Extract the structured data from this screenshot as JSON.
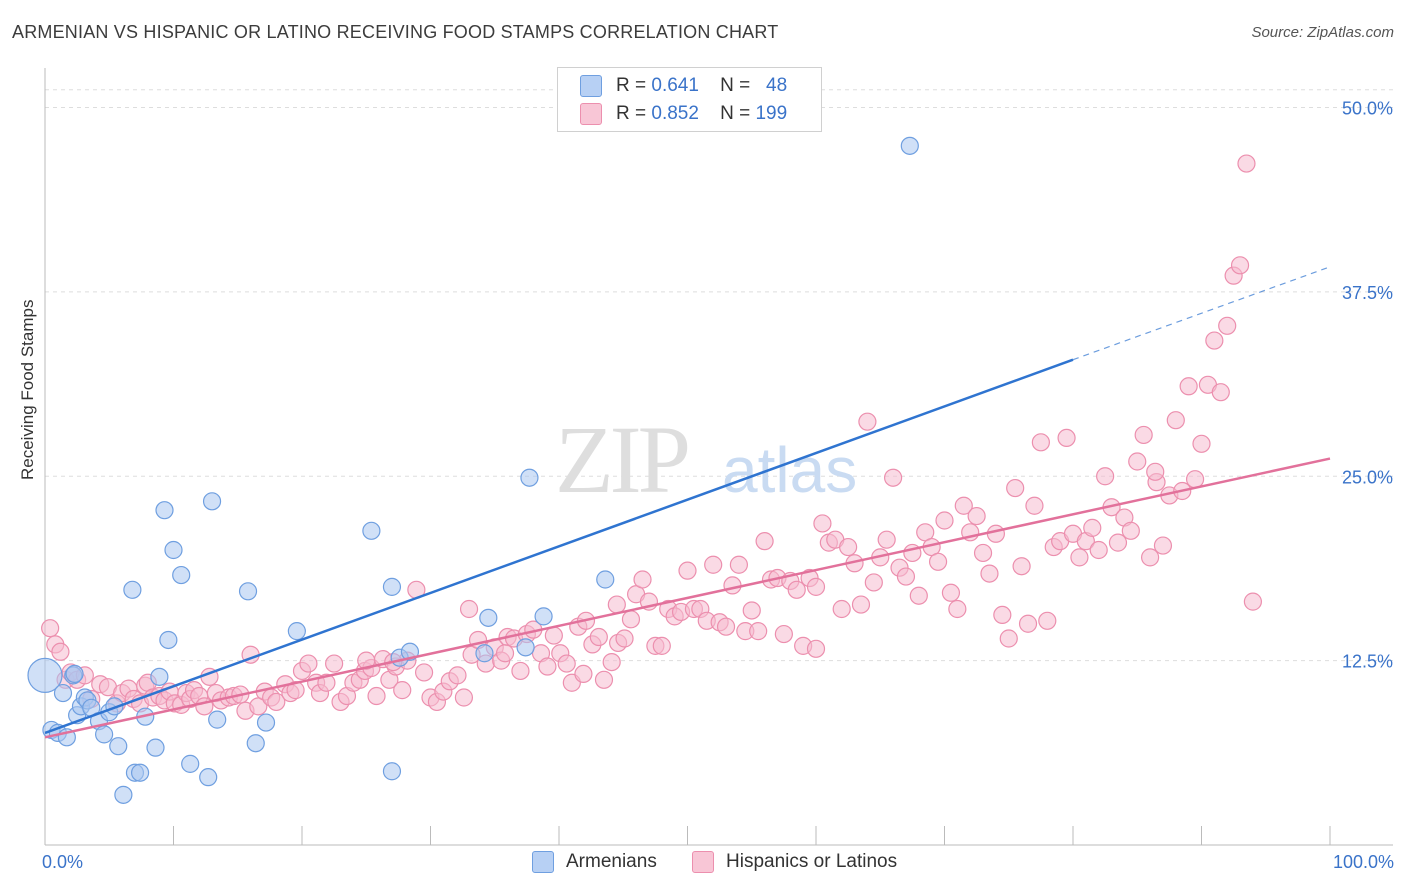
{
  "title": "ARMENIAN VS HISPANIC OR LATINO RECEIVING FOOD STAMPS CORRELATION CHART",
  "source": "Source: ZipAtlas.com",
  "watermark": {
    "zip": "ZIP",
    "atlas": "atlas"
  },
  "legend_top": [
    {
      "r_label": "R =",
      "r_value": "0.641",
      "n_label": "N =",
      "n_value": "48"
    },
    {
      "r_label": "R =",
      "r_value": "0.852",
      "n_label": "N =",
      "n_value": "199"
    }
  ],
  "legend_bottom": [
    "Armenians",
    "Hispanics or Latinos"
  ],
  "colors": {
    "armenian_fill": "#a9c6f0",
    "armenian_stroke": "#6f9fe0",
    "armenian_line": "#2f74d0",
    "hispanic_fill": "#f6bcd0",
    "hispanic_stroke": "#ec8fae",
    "hispanic_line": "#e2719b",
    "tick_text": "#3a73c9",
    "grid": "#dddddd"
  },
  "chart_data": {
    "type": "scatter",
    "title": "ARMENIAN VS HISPANIC OR LATINO RECEIVING FOOD STAMPS CORRELATION CHART",
    "xlabel": "",
    "ylabel": "Receiving Food Stamps",
    "x_tick_labels": [
      "0.0%",
      "100.0%"
    ],
    "y_tick_labels": [
      "12.5%",
      "25.0%",
      "37.5%",
      "50.0%"
    ],
    "y_ticks": [
      12.5,
      25.0,
      37.5,
      50.0
    ],
    "xlim": [
      0,
      100
    ],
    "ylim": [
      0,
      52
    ],
    "grid": true,
    "legend_position": "top-center",
    "series": [
      {
        "name": "Armenians",
        "r": 0.641,
        "n": 48,
        "trend": {
          "x0": 0,
          "y0": 7.6,
          "x1": 80,
          "y1": 32.9,
          "dash_to_x": 100,
          "dash_to_y": 39.2
        },
        "points": [
          [
            0.0,
            11.5
          ],
          [
            0.5,
            7.8
          ],
          [
            1.0,
            7.6
          ],
          [
            1.7,
            7.3
          ],
          [
            1.4,
            10.3
          ],
          [
            2.2,
            11.5
          ],
          [
            2.5,
            8.8
          ],
          [
            2.8,
            9.4
          ],
          [
            3.1,
            10.0
          ],
          [
            3.3,
            9.8
          ],
          [
            3.6,
            9.3
          ],
          [
            4.2,
            8.4
          ],
          [
            4.6,
            7.5
          ],
          [
            5.0,
            9.0
          ],
          [
            5.4,
            9.4
          ],
          [
            5.7,
            6.7
          ],
          [
            6.1,
            3.4
          ],
          [
            6.8,
            17.3
          ],
          [
            7.0,
            4.9
          ],
          [
            7.4,
            4.9
          ],
          [
            7.8,
            8.7
          ],
          [
            8.6,
            6.6
          ],
          [
            8.9,
            11.4
          ],
          [
            9.3,
            22.7
          ],
          [
            9.6,
            13.9
          ],
          [
            10.0,
            20.0
          ],
          [
            10.6,
            18.3
          ],
          [
            11.3,
            5.5
          ],
          [
            12.7,
            4.6
          ],
          [
            13.0,
            23.3
          ],
          [
            13.4,
            8.5
          ],
          [
            15.8,
            17.2
          ],
          [
            16.4,
            6.9
          ],
          [
            17.2,
            8.3
          ],
          [
            19.6,
            14.5
          ],
          [
            25.4,
            21.3
          ],
          [
            27.0,
            17.5
          ],
          [
            27.0,
            5.0
          ],
          [
            27.6,
            12.7
          ],
          [
            28.4,
            13.1
          ],
          [
            34.2,
            13.0
          ],
          [
            34.5,
            15.4
          ],
          [
            37.4,
            13.4
          ],
          [
            37.7,
            24.9
          ],
          [
            38.8,
            15.5
          ],
          [
            43.6,
            18.0
          ],
          [
            67.3,
            47.4
          ],
          [
            2.3,
            11.6
          ]
        ]
      },
      {
        "name": "Hispanics or Latinos",
        "r": 0.852,
        "n": 199,
        "trend": {
          "x0": 0,
          "y0": 7.3,
          "x1": 100,
          "y1": 26.2
        },
        "points": [
          [
            0.4,
            14.7
          ],
          [
            0.8,
            13.6
          ],
          [
            1.2,
            13.1
          ],
          [
            1.6,
            11.2
          ],
          [
            2.0,
            11.7
          ],
          [
            2.5,
            11.2
          ],
          [
            3.1,
            11.5
          ],
          [
            3.6,
            9.9
          ],
          [
            4.3,
            10.9
          ],
          [
            4.9,
            10.7
          ],
          [
            5.6,
            9.6
          ],
          [
            6.0,
            10.3
          ],
          [
            6.5,
            10.6
          ],
          [
            6.9,
            9.9
          ],
          [
            7.4,
            9.6
          ],
          [
            7.8,
            10.8
          ],
          [
            8.0,
            11.0
          ],
          [
            8.4,
            10.0
          ],
          [
            8.9,
            10.1
          ],
          [
            9.3,
            9.8
          ],
          [
            9.7,
            10.4
          ],
          [
            10.1,
            9.6
          ],
          [
            10.6,
            9.5
          ],
          [
            11.0,
            10.3
          ],
          [
            11.3,
            9.9
          ],
          [
            11.6,
            10.5
          ],
          [
            12.0,
            10.1
          ],
          [
            12.4,
            9.4
          ],
          [
            12.8,
            11.4
          ],
          [
            13.3,
            10.3
          ],
          [
            13.7,
            9.8
          ],
          [
            14.3,
            10.0
          ],
          [
            14.7,
            10.1
          ],
          [
            15.2,
            10.2
          ],
          [
            15.6,
            9.1
          ],
          [
            16.0,
            12.9
          ],
          [
            16.6,
            9.4
          ],
          [
            17.1,
            10.4
          ],
          [
            17.6,
            10.0
          ],
          [
            18.0,
            9.7
          ],
          [
            18.7,
            10.9
          ],
          [
            19.1,
            10.3
          ],
          [
            19.5,
            10.5
          ],
          [
            20.0,
            11.8
          ],
          [
            20.5,
            12.3
          ],
          [
            21.1,
            11.0
          ],
          [
            21.4,
            10.3
          ],
          [
            21.9,
            11.0
          ],
          [
            22.5,
            12.3
          ],
          [
            23.0,
            9.7
          ],
          [
            23.5,
            10.1
          ],
          [
            24.0,
            11.0
          ],
          [
            24.5,
            11.2
          ],
          [
            24.9,
            11.8
          ],
          [
            25.4,
            12.0
          ],
          [
            25.8,
            10.1
          ],
          [
            26.3,
            12.6
          ],
          [
            26.8,
            11.2
          ],
          [
            27.3,
            12.1
          ],
          [
            27.8,
            10.5
          ],
          [
            28.2,
            12.5
          ],
          [
            28.9,
            17.3
          ],
          [
            29.5,
            11.7
          ],
          [
            30.0,
            10.0
          ],
          [
            30.5,
            9.7
          ],
          [
            31.0,
            10.4
          ],
          [
            31.5,
            11.1
          ],
          [
            32.1,
            11.5
          ],
          [
            32.6,
            10.0
          ],
          [
            33.2,
            12.9
          ],
          [
            33.7,
            13.9
          ],
          [
            34.3,
            12.3
          ],
          [
            35.0,
            13.4
          ],
          [
            35.5,
            12.5
          ],
          [
            36.0,
            14.1
          ],
          [
            36.5,
            14.0
          ],
          [
            37.0,
            11.8
          ],
          [
            37.5,
            14.3
          ],
          [
            38.0,
            14.6
          ],
          [
            38.6,
            13.0
          ],
          [
            39.1,
            12.1
          ],
          [
            39.6,
            14.2
          ],
          [
            40.1,
            13.0
          ],
          [
            40.6,
            12.3
          ],
          [
            41.0,
            11.0
          ],
          [
            41.5,
            14.8
          ],
          [
            42.1,
            15.2
          ],
          [
            42.6,
            13.6
          ],
          [
            43.1,
            14.1
          ],
          [
            43.5,
            11.2
          ],
          [
            44.1,
            12.4
          ],
          [
            44.6,
            13.7
          ],
          [
            45.1,
            14.0
          ],
          [
            45.6,
            15.3
          ],
          [
            46.0,
            17.0
          ],
          [
            46.5,
            18.0
          ],
          [
            47.0,
            16.5
          ],
          [
            47.5,
            13.5
          ],
          [
            48.0,
            13.5
          ],
          [
            48.5,
            16.0
          ],
          [
            49.0,
            15.5
          ],
          [
            49.5,
            15.8
          ],
          [
            50.0,
            18.6
          ],
          [
            50.5,
            16.0
          ],
          [
            51.0,
            16.0
          ],
          [
            51.5,
            15.2
          ],
          [
            52.0,
            19.0
          ],
          [
            52.5,
            15.1
          ],
          [
            53.0,
            14.8
          ],
          [
            53.5,
            17.6
          ],
          [
            54.0,
            19.0
          ],
          [
            54.5,
            14.5
          ],
          [
            55.0,
            15.9
          ],
          [
            55.5,
            14.5
          ],
          [
            56.0,
            20.6
          ],
          [
            56.5,
            18.0
          ],
          [
            57.0,
            18.1
          ],
          [
            57.5,
            14.3
          ],
          [
            58.0,
            17.9
          ],
          [
            58.5,
            17.3
          ],
          [
            59.0,
            13.5
          ],
          [
            59.5,
            18.1
          ],
          [
            60.0,
            17.5
          ],
          [
            60.5,
            21.8
          ],
          [
            61.0,
            20.5
          ],
          [
            61.5,
            20.7
          ],
          [
            62.0,
            16.0
          ],
          [
            62.5,
            20.2
          ],
          [
            63.0,
            19.1
          ],
          [
            63.5,
            16.3
          ],
          [
            64.0,
            28.7
          ],
          [
            64.5,
            17.8
          ],
          [
            65.0,
            19.5
          ],
          [
            65.5,
            20.7
          ],
          [
            66.0,
            24.9
          ],
          [
            66.5,
            18.8
          ],
          [
            67.0,
            18.2
          ],
          [
            67.5,
            19.8
          ],
          [
            68.0,
            16.9
          ],
          [
            68.5,
            21.2
          ],
          [
            69.0,
            20.2
          ],
          [
            69.5,
            19.2
          ],
          [
            70.0,
            22.0
          ],
          [
            70.5,
            17.1
          ],
          [
            71.0,
            16.0
          ],
          [
            71.5,
            23.0
          ],
          [
            72.0,
            21.2
          ],
          [
            72.5,
            22.3
          ],
          [
            73.0,
            19.8
          ],
          [
            73.5,
            18.4
          ],
          [
            74.0,
            21.1
          ],
          [
            74.5,
            15.6
          ],
          [
            75.0,
            14.0
          ],
          [
            75.5,
            24.2
          ],
          [
            76.0,
            18.9
          ],
          [
            76.5,
            15.0
          ],
          [
            77.0,
            23.0
          ],
          [
            77.5,
            27.3
          ],
          [
            78.0,
            15.2
          ],
          [
            78.5,
            20.2
          ],
          [
            79.0,
            20.6
          ],
          [
            79.5,
            27.6
          ],
          [
            80.0,
            21.1
          ],
          [
            80.5,
            19.5
          ],
          [
            81.0,
            20.6
          ],
          [
            81.5,
            21.5
          ],
          [
            82.0,
            20.0
          ],
          [
            82.5,
            25.0
          ],
          [
            83.0,
            22.9
          ],
          [
            83.5,
            20.5
          ],
          [
            84.0,
            22.2
          ],
          [
            84.5,
            21.3
          ],
          [
            85.0,
            26.0
          ],
          [
            85.5,
            27.8
          ],
          [
            86.0,
            19.5
          ],
          [
            86.5,
            24.6
          ],
          [
            87.0,
            20.3
          ],
          [
            87.5,
            23.7
          ],
          [
            88.0,
            28.8
          ],
          [
            88.5,
            24.0
          ],
          [
            89.0,
            31.1
          ],
          [
            89.5,
            24.8
          ],
          [
            90.0,
            27.2
          ],
          [
            90.5,
            31.2
          ],
          [
            91.0,
            34.2
          ],
          [
            91.5,
            30.7
          ],
          [
            92.0,
            35.2
          ],
          [
            92.5,
            38.6
          ],
          [
            93.0,
            39.3
          ],
          [
            93.5,
            46.2
          ],
          [
            94.0,
            16.5
          ],
          [
            60.0,
            13.3
          ],
          [
            44.5,
            16.3
          ],
          [
            33.0,
            16.0
          ],
          [
            41.9,
            11.6
          ],
          [
            25.0,
            12.5
          ],
          [
            35.8,
            13.0
          ],
          [
            27.1,
            12.4
          ],
          [
            86.4,
            25.3
          ]
        ]
      }
    ]
  }
}
